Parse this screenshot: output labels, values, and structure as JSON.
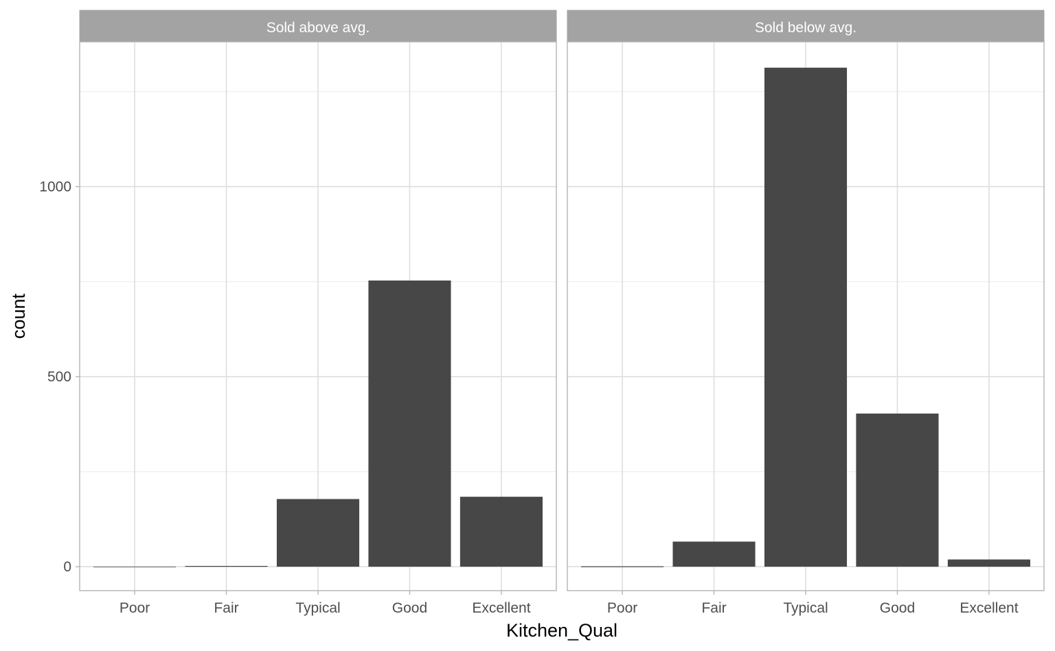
{
  "chart_data": {
    "type": "bar",
    "categories": [
      "Poor",
      "Fair",
      "Typical",
      "Good",
      "Excellent"
    ],
    "xlabel": "Kitchen_Qual",
    "ylabel": "count",
    "ylim": [
      -63,
      1381
    ],
    "yticks": [
      0,
      500,
      1000
    ],
    "grid": true,
    "bar_color": "#474747",
    "strip_color": "#a3a3a3",
    "panels": [
      {
        "name": "Sold above avg.",
        "values": [
          0,
          2,
          178,
          753,
          184
        ]
      },
      {
        "name": "Sold below avg.",
        "values": [
          1,
          66,
          1313,
          403,
          19
        ]
      }
    ]
  }
}
